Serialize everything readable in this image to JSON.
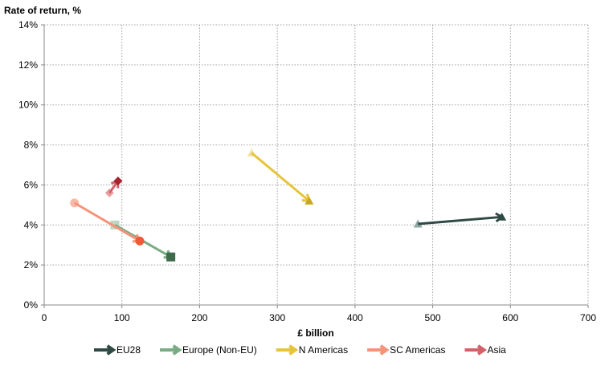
{
  "chart_data": {
    "type": "scatter",
    "title": "",
    "xlabel": "£ billion",
    "ylabel": "Rate of return, %",
    "xlim": [
      0,
      700
    ],
    "ylim": [
      0,
      14
    ],
    "x_ticks": [
      0,
      100,
      200,
      300,
      400,
      500,
      600,
      700
    ],
    "y_ticks": [
      0,
      2,
      4,
      6,
      8,
      10,
      12,
      14
    ],
    "y_tick_labels": [
      "0%",
      "2%",
      "4%",
      "6%",
      "8%",
      "10%",
      "12%",
      "14%"
    ],
    "grid": true,
    "legend_position": "bottom",
    "series": [
      {
        "name": "EU28",
        "color": "#2f4a44",
        "start_color": "#8fa8a4",
        "marker": "triangle",
        "x": [
          481,
          589
        ],
        "y": [
          4.05,
          4.4
        ]
      },
      {
        "name": "Europe (Non-EU)",
        "color": "#7aab83",
        "start_color": "#bdd6c1",
        "end_color": "#3f6a4b",
        "marker": "square",
        "x": [
          91,
          163
        ],
        "y": [
          4.0,
          2.4
        ]
      },
      {
        "name": "N Americas",
        "color": "#e6c43c",
        "start_color": "#f2e3a6",
        "end_color": "#c8a61e",
        "marker": "triangle",
        "x": [
          267,
          341
        ],
        "y": [
          7.6,
          5.2
        ]
      },
      {
        "name": "SC Americas",
        "color": "#f4937a",
        "start_color": "#f9b8a8",
        "end_color": "#f05a36",
        "marker": "circle",
        "x": [
          39,
          123
        ],
        "y": [
          5.1,
          3.2
        ]
      },
      {
        "name": "Asia",
        "color": "#d4606a",
        "start_color": "#e6a0a0",
        "end_color": "#a8232c",
        "marker": "diamond",
        "x": [
          84,
          95
        ],
        "y": [
          5.6,
          6.2
        ]
      }
    ]
  }
}
